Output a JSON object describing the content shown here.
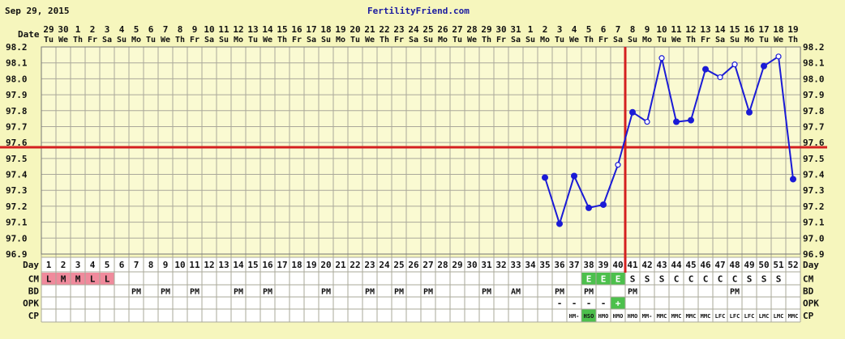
{
  "header": {
    "date_text": "Sep 29, 2015",
    "brand": "FertilityFriend.com"
  },
  "row_labels": {
    "date": "Date",
    "day": "Day",
    "cm": "CM",
    "bd": "BD",
    "opk": "OPK",
    "cp": "CP"
  },
  "dates": [
    "29",
    "30",
    "1",
    "2",
    "3",
    "4",
    "5",
    "6",
    "7",
    "8",
    "9",
    "10",
    "11",
    "12",
    "13",
    "14",
    "15",
    "16",
    "17",
    "18",
    "19",
    "20",
    "21",
    "22",
    "23",
    "24",
    "25",
    "26",
    "27",
    "28",
    "29",
    "30",
    "31",
    "1",
    "2",
    "3",
    "4",
    "5",
    "6",
    "7",
    "8",
    "9",
    "10",
    "11",
    "12",
    "13",
    "14",
    "15",
    "16",
    "17",
    "18",
    "19"
  ],
  "weekdays": [
    "Tu",
    "We",
    "Th",
    "Fr",
    "Sa",
    "Su",
    "Mo",
    "Tu",
    "We",
    "Th",
    "Fr",
    "Sa",
    "Su",
    "Mo",
    "Tu",
    "We",
    "Th",
    "Fr",
    "Sa",
    "Su",
    "Mo",
    "Tu",
    "We",
    "Th",
    "Fr",
    "Sa",
    "Su",
    "Mo",
    "Tu",
    "We",
    "Th",
    "Fr",
    "Sa",
    "Su",
    "Mo",
    "Tu",
    "We",
    "Th",
    "Fr",
    "Sa",
    "Su",
    "Mo",
    "Tu",
    "We",
    "Th",
    "Fr",
    "Sa",
    "Su",
    "Mo",
    "Tu",
    "We",
    "Th"
  ],
  "cm": [
    "L",
    "M",
    "M",
    "L",
    "L",
    "",
    "",
    "",
    "",
    "",
    "",
    "",
    "",
    "",
    "",
    "",
    "",
    "",
    "",
    "",
    "",
    "",
    "",
    "",
    "",
    "",
    "",
    "",
    "",
    "",
    "",
    "",
    "",
    "",
    "",
    "",
    "",
    "E",
    "E",
    "E",
    "S",
    "S",
    "S",
    "C",
    "C",
    "C",
    "C",
    "C",
    "S",
    "S",
    "S",
    ""
  ],
  "bd": [
    "",
    "",
    "",
    "",
    "",
    "",
    "PM",
    "",
    "PM",
    "",
    "PM",
    "",
    "",
    "PM",
    "",
    "PM",
    "",
    "",
    "",
    "PM",
    "",
    "",
    "PM",
    "",
    "PM",
    "",
    "PM",
    "",
    "",
    "",
    "PM",
    "",
    "AM",
    "",
    "",
    "PM",
    "",
    "PM",
    "",
    "",
    "PM",
    "",
    "",
    "",
    "",
    "",
    "",
    "PM",
    "",
    "",
    "",
    ""
  ],
  "opk": [
    "",
    "",
    "",
    "",
    "",
    "",
    "",
    "",
    "",
    "",
    "",
    "",
    "",
    "",
    "",
    "",
    "",
    "",
    "",
    "",
    "",
    "",
    "",
    "",
    "",
    "",
    "",
    "",
    "",
    "",
    "",
    "",
    "",
    "",
    "",
    "-",
    "-",
    "-",
    "-",
    "+",
    "",
    "",
    "",
    "",
    "",
    "",
    "",
    "",
    "",
    "",
    "",
    ""
  ],
  "cp": [
    "",
    "",
    "",
    "",
    "",
    "",
    "",
    "",
    "",
    "",
    "",
    "",
    "",
    "",
    "",
    "",
    "",
    "",
    "",
    "",
    "",
    "",
    "",
    "",
    "",
    "",
    "",
    "",
    "",
    "",
    "",
    "",
    "",
    "",
    "",
    "",
    "HM-",
    "HSO",
    "HMO",
    "HMO",
    "HMO",
    "MM-",
    "MMC",
    "MMC",
    "MMC",
    "MMC",
    "LFC",
    "LFC",
    "LFC",
    "LMC",
    "LMC",
    "MMC"
  ],
  "colors": {
    "background": "#f6f6bd",
    "plot_bg": "#fafad2",
    "grid": "#aaa89a",
    "line": "#1b1bd6",
    "coverline": "#d42020",
    "ovulation_line": "#d42020",
    "menstruation": "#f08a9c",
    "egg_white": "#4cc04c",
    "positive_opk": "#4cc04c",
    "label_text": "#111111"
  },
  "chart_data": {
    "type": "line",
    "title": "",
    "xlabel": "Day",
    "ylabel": "",
    "days": [
      1,
      2,
      3,
      4,
      5,
      6,
      7,
      8,
      9,
      10,
      11,
      12,
      13,
      14,
      15,
      16,
      17,
      18,
      19,
      20,
      21,
      22,
      23,
      24,
      25,
      26,
      27,
      28,
      29,
      30,
      31,
      32,
      33,
      34,
      35,
      36,
      37,
      38,
      39,
      40,
      41,
      42,
      43,
      44,
      45,
      46,
      47,
      48,
      49,
      50,
      51,
      52
    ],
    "ylim": [
      96.9,
      98.2
    ],
    "yticks": [
      "96.9",
      "97.0",
      "97.1",
      "97.2",
      "97.3",
      "97.4",
      "97.5",
      "97.6",
      "97.7",
      "97.8",
      "97.9",
      "98.0",
      "98.1",
      "98.2"
    ],
    "grid": true,
    "coverline": 97.57,
    "ovulation_day": 40,
    "series": [
      {
        "points": [
          {
            "day": 35,
            "temp": 97.38,
            "open": false
          },
          {
            "day": 36,
            "temp": 97.09,
            "open": false
          },
          {
            "day": 37,
            "temp": 97.39,
            "open": false
          },
          {
            "day": 38,
            "temp": 97.19,
            "open": false
          },
          {
            "day": 39,
            "temp": 97.21,
            "open": false
          },
          {
            "day": 40,
            "temp": 97.46,
            "open": true
          },
          {
            "day": 41,
            "temp": 97.79,
            "open": false
          },
          {
            "day": 42,
            "temp": 97.73,
            "open": true
          },
          {
            "day": 43,
            "temp": 98.13,
            "open": true
          },
          {
            "day": 44,
            "temp": 97.73,
            "open": false
          },
          {
            "day": 45,
            "temp": 97.74,
            "open": false
          },
          {
            "day": 46,
            "temp": 98.06,
            "open": false
          },
          {
            "day": 47,
            "temp": 98.01,
            "open": true
          },
          {
            "day": 48,
            "temp": 98.09,
            "open": true
          },
          {
            "day": 49,
            "temp": 97.79,
            "open": false
          },
          {
            "day": 50,
            "temp": 98.08,
            "open": false
          },
          {
            "day": 51,
            "temp": 98.14,
            "open": true
          },
          {
            "day": 52,
            "temp": 97.37,
            "open": false
          }
        ]
      }
    ]
  }
}
